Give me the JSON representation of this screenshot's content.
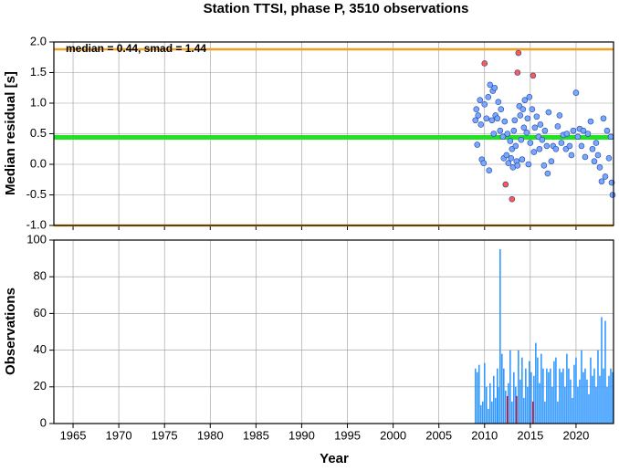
{
  "chart_data": [
    {
      "type": "scatter",
      "title": "Station TTSI, phase P, 3510 observations",
      "ylabel": "Median residual [s]",
      "annotation": "median = 0.44, smad = 1.44",
      "xlim": [
        1962.9,
        2024.1
      ],
      "xticks": [
        1965,
        1970,
        1975,
        1980,
        1985,
        1990,
        1995,
        2000,
        2005,
        2010,
        2015,
        2020
      ],
      "ylim": [
        -1.0,
        2.0
      ],
      "yticks": [
        {
          "value": -1.0,
          "label": "-1.0"
        },
        -0.5,
        {
          "value": 0.0,
          "label": "0.0"
        },
        0.5,
        {
          "value": 1.0,
          "label": "1.0"
        },
        1.5,
        {
          "value": 2.0,
          "label": "2.0"
        }
      ],
      "grid": true,
      "reference_lines": [
        {
          "value": 1.88,
          "color": "#f0a020"
        },
        {
          "value": 0.44,
          "color": "#22e022"
        },
        {
          "value": -1.0,
          "color": "#f0a020"
        }
      ],
      "series": [
        {
          "color": "#78a8ff",
          "x": [
            2009.0,
            2009.1,
            2009.2,
            2009.3,
            2009.5,
            2009.6,
            2009.7,
            2009.9,
            2010.0,
            2010.2,
            2010.4,
            2010.5,
            2010.6,
            2010.8,
            2010.9,
            2011.0,
            2011.1,
            2011.2,
            2011.4,
            2011.5,
            2011.7,
            2011.8,
            2012.0,
            2012.1,
            2012.2,
            2012.4,
            2012.5,
            2012.6,
            2012.8,
            2012.9,
            2013.0,
            2013.1,
            2013.2,
            2013.3,
            2013.4,
            2013.5,
            2013.6,
            2013.8,
            2013.9,
            2014.0,
            2014.1,
            2014.2,
            2014.3,
            2014.4,
            2014.6,
            2014.7,
            2014.8,
            2014.9,
            2015.0,
            2015.2,
            2015.4,
            2015.5,
            2015.7,
            2015.9,
            2016.0,
            2016.1,
            2016.3,
            2016.5,
            2016.6,
            2016.8,
            2016.9,
            2017.0,
            2017.3,
            2017.5,
            2017.8,
            2018.0,
            2018.2,
            2018.4,
            2018.6,
            2018.9,
            2019.0,
            2019.3,
            2019.5,
            2019.7,
            2020.0,
            2020.2,
            2020.4,
            2020.6,
            2020.8,
            2021.0,
            2021.3,
            2021.6,
            2021.8,
            2022.0,
            2022.2,
            2022.4,
            2022.6,
            2022.8,
            2023.0,
            2023.2,
            2023.4,
            2023.6,
            2023.8,
            2023.9,
            2024.0
          ],
          "values": [
            0.72,
            0.9,
            0.32,
            0.8,
            1.05,
            0.65,
            0.08,
            0.02,
            0.98,
            0.75,
            1.1,
            -0.1,
            1.3,
            0.72,
            1.2,
            0.5,
            1.25,
            0.8,
            0.75,
            1.02,
            0.55,
            0.9,
            0.45,
            0.1,
            0.7,
            0.15,
            0.5,
            0.02,
            0.38,
            0.1,
            0.25,
            -0.05,
            0.55,
            0.72,
            0.3,
            0.05,
            -0.02,
            0.95,
            0.8,
            0.4,
            0.08,
            0.9,
            0.6,
            1.05,
            0.52,
            0.75,
            0.0,
            1.1,
            0.35,
            0.9,
            0.2,
            0.6,
            0.78,
            0.45,
            0.25,
            0.65,
            0.4,
            -0.02,
            0.55,
            0.3,
            -0.15,
            0.85,
            0.05,
            0.3,
            0.25,
            0.62,
            0.8,
            0.35,
            0.48,
            0.25,
            0.5,
            0.3,
            0.15,
            0.55,
            1.17,
            0.45,
            0.58,
            0.3,
            0.55,
            0.12,
            0.5,
            0.7,
            0.25,
            0.05,
            0.35,
            0.15,
            -0.05,
            -0.28,
            0.75,
            -0.2,
            0.55,
            0.1,
            0.45,
            -0.3,
            -0.5
          ]
        },
        {
          "color": "#ff5a4a",
          "x": [
            2010.0,
            2013.7,
            2013.6,
            2015.3,
            2012.3,
            2013.0
          ],
          "values": [
            1.65,
            1.82,
            1.5,
            1.45,
            -0.33,
            -0.57
          ]
        }
      ]
    },
    {
      "type": "bar",
      "ylabel": "Observations",
      "xlabel": "Year",
      "xlim": [
        1962.9,
        2024.1
      ],
      "xticks": [
        1965,
        1970,
        1975,
        1980,
        1985,
        1990,
        1995,
        2000,
        2005,
        2010,
        2015,
        2020
      ],
      "ylim": [
        0,
        100
      ],
      "yticks": [
        0,
        20,
        40,
        60,
        80,
        100
      ],
      "grid": true,
      "series": [
        {
          "color": "#3399ff",
          "x": [
            2009.0,
            2009.2,
            2009.4,
            2009.6,
            2009.8,
            2010.0,
            2010.2,
            2010.4,
            2010.6,
            2010.8,
            2011.0,
            2011.2,
            2011.4,
            2011.5,
            2011.7,
            2011.9,
            2012.1,
            2012.3,
            2012.6,
            2012.8,
            2013.0,
            2013.2,
            2013.4,
            2013.7,
            2013.9,
            2014.1,
            2014.3,
            2014.5,
            2014.7,
            2014.9,
            2015.1,
            2015.4,
            2015.6,
            2015.8,
            2016.0,
            2016.2,
            2016.4,
            2016.6,
            2016.8,
            2017.0,
            2017.2,
            2017.4,
            2017.6,
            2017.8,
            2018.0,
            2018.2,
            2018.4,
            2018.6,
            2018.8,
            2019.0,
            2019.2,
            2019.4,
            2019.6,
            2019.8,
            2020.0,
            2020.2,
            2020.4,
            2020.6,
            2020.8,
            2021.0,
            2021.2,
            2021.4,
            2021.6,
            2021.8,
            2022.0,
            2022.2,
            2022.4,
            2022.6,
            2022.8,
            2023.0,
            2023.2,
            2023.4,
            2023.6,
            2023.8,
            2024.0
          ],
          "values": [
            30,
            28,
            32,
            10,
            12,
            33,
            20,
            8,
            22,
            12,
            26,
            14,
            30,
            20,
            95,
            38,
            30,
            18,
            22,
            40,
            12,
            28,
            20,
            40,
            24,
            36,
            14,
            30,
            20,
            34,
            28,
            26,
            44,
            36,
            22,
            38,
            30,
            12,
            30,
            28,
            30,
            20,
            34,
            36,
            12,
            30,
            28,
            30,
            20,
            38,
            30,
            24,
            14,
            32,
            36,
            20,
            24,
            40,
            28,
            30,
            24,
            16,
            36,
            26,
            30,
            20,
            40,
            26,
            58,
            30,
            56,
            20,
            26,
            30,
            28
          ]
        },
        {
          "color": "#cc1020",
          "x": [
            2012.5,
            2013.5,
            2015.3
          ],
          "values": [
            15,
            15,
            12
          ]
        }
      ]
    }
  ]
}
